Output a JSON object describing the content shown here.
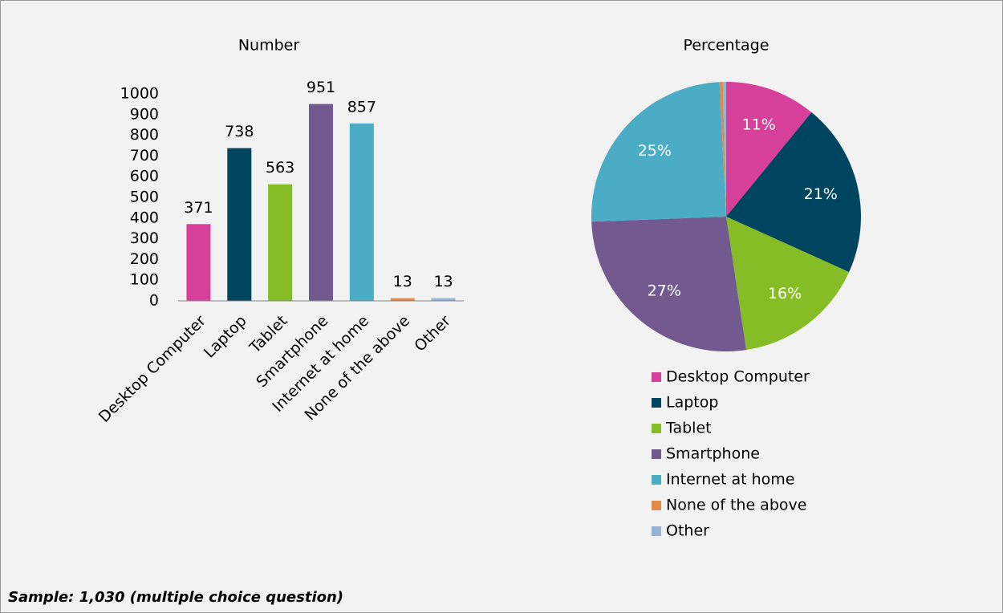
{
  "chart_data": [
    {
      "type": "bar",
      "title": "Number",
      "categories": [
        "Desktop Computer",
        "Laptop",
        "Tablet",
        "Smartphone",
        "Internet at home",
        "None of the above",
        "Other"
      ],
      "values": [
        371,
        738,
        563,
        951,
        857,
        13,
        13
      ],
      "colors": [
        "#d6409a",
        "#004560",
        "#86bc25",
        "#725a91",
        "#4bacc6",
        "#e08b4a",
        "#95b3d7"
      ],
      "ylim": [
        0,
        1000
      ],
      "yticks": [
        0,
        100,
        200,
        300,
        400,
        500,
        600,
        700,
        800,
        900,
        1000
      ]
    },
    {
      "type": "pie",
      "title": "Percentage",
      "categories": [
        "Desktop Computer",
        "Laptop",
        "Tablet",
        "Smartphone",
        "Internet at home",
        "None of the above",
        "Other"
      ],
      "values": [
        11,
        21,
        16,
        27,
        25,
        0.4,
        0.4
      ],
      "value_labels": [
        "11%",
        "21%",
        "16%",
        "27%",
        "25%",
        null,
        null
      ],
      "colors": [
        "#d6409a",
        "#004560",
        "#86bc25",
        "#725a91",
        "#4bacc6",
        "#e08b4a",
        "#95b3d7"
      ]
    }
  ],
  "note": "Sample: 1,030 (multiple choice question)"
}
